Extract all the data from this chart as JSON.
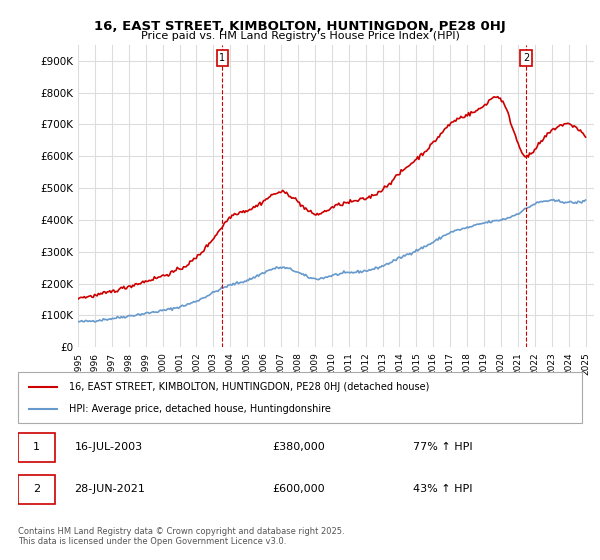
{
  "title": "16, EAST STREET, KIMBOLTON, HUNTINGDON, PE28 0HJ",
  "subtitle": "Price paid vs. HM Land Registry's House Price Index (HPI)",
  "background_color": "#ffffff",
  "plot_bg_color": "#ffffff",
  "grid_color": "#dddddd",
  "red_color": "#cc0000",
  "blue_color": "#6699cc",
  "dashed_red": "#cc0000",
  "ylabel_format": "£{0}K",
  "yticks": [
    0,
    100000,
    200000,
    300000,
    400000,
    500000,
    600000,
    700000,
    800000,
    900000
  ],
  "ytick_labels": [
    "£0",
    "£100K",
    "£200K",
    "£300K",
    "£400K",
    "£500K",
    "£600K",
    "£700K",
    "£800K",
    "£900K"
  ],
  "sale1_date": 2003.54,
  "sale1_price": 380000,
  "sale1_label": "1",
  "sale2_date": 2021.49,
  "sale2_price": 600000,
  "sale2_label": "2",
  "legend_entry1": "16, EAST STREET, KIMBOLTON, HUNTINGDON, PE28 0HJ (detached house)",
  "legend_entry2": "HPI: Average price, detached house, Huntingdonshire",
  "table_row1": [
    "1",
    "16-JUL-2003",
    "£380,000",
    "77% ↑ HPI"
  ],
  "table_row2": [
    "2",
    "28-JUN-2021",
    "£600,000",
    "43% ↑ HPI"
  ],
  "footer": "Contains HM Land Registry data © Crown copyright and database right 2025.\nThis data is licensed under the Open Government Licence v3.0.",
  "xmin": 1995,
  "xmax": 2025.5,
  "ymin": 0,
  "ymax": 950000
}
